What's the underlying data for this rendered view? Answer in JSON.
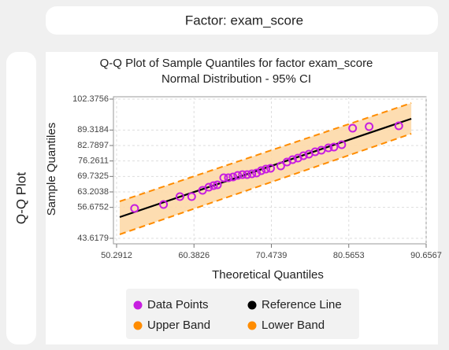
{
  "header": {
    "title": "Factor: exam_score"
  },
  "sidebar": {
    "label": "Q-Q Plot"
  },
  "chart_data": {
    "type": "scatter",
    "title": "Q-Q Plot of Sample Quantiles for factor exam_score",
    "subtitle": "Normal Distribution - 95% CI",
    "xlabel": "Theoretical Quantiles",
    "ylabel": "Sample Quantiles",
    "xlim": [
      50.2912,
      90.6567
    ],
    "ylim": [
      43.6179,
      102.3756
    ],
    "xticks": [
      50.2912,
      60.3826,
      70.4739,
      80.5653,
      90.6567
    ],
    "yticks": [
      43.6179,
      56.6752,
      63.2038,
      69.7325,
      76.2611,
      82.7897,
      89.3184,
      102.3756
    ],
    "grid": true,
    "band_fill": "#fdd9a8",
    "series": [
      {
        "name": "Data Points",
        "color": "#c71ee0",
        "style": "marker",
        "x": [
          52.64,
          56.41,
          58.55,
          60.08,
          61.5,
          62.32,
          62.93,
          63.44,
          64.26,
          64.87,
          65.48,
          66.09,
          66.7,
          67.31,
          67.93,
          68.54,
          69.15,
          69.76,
          70.37,
          71.7,
          72.51,
          73.23,
          73.94,
          74.65,
          75.37,
          76.18,
          76.99,
          77.91,
          78.63,
          79.65,
          81.07,
          83.22,
          87.09
        ],
        "values": [
          56.23,
          57.89,
          61.21,
          61.21,
          63.87,
          65.19,
          65.86,
          66.19,
          69.18,
          69.18,
          69.51,
          70.18,
          70.51,
          70.51,
          70.84,
          71.17,
          72.17,
          72.83,
          73.16,
          74.16,
          75.82,
          76.82,
          77.48,
          78.47,
          79.14,
          80.14,
          80.8,
          81.79,
          82.13,
          83.12,
          90.1,
          90.76,
          91.09
        ]
      },
      {
        "name": "Reference Line",
        "color": "#000000",
        "style": "line",
        "x": [
          50.7,
          88.72
        ],
        "values": [
          52.58,
          94.08
        ]
      },
      {
        "name": "Upper Band",
        "color": "#ff8c00",
        "style": "dashed",
        "x": [
          50.7,
          88.72
        ],
        "values": [
          59.22,
          100.72
        ]
      },
      {
        "name": "Lower Band",
        "color": "#ff8c00",
        "style": "dashed",
        "x": [
          50.7,
          88.72
        ],
        "values": [
          45.28,
          87.77
        ]
      }
    ]
  }
}
